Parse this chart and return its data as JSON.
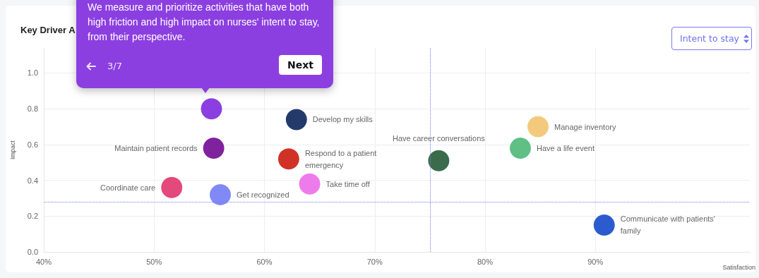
{
  "chart_data": {
    "type": "scatter",
    "title": "Key Driver A",
    "xlabel": "Satisfaction",
    "ylabel": "Impact",
    "xlim": [
      40,
      104
    ],
    "xticks": [
      {
        "value": 40,
        "label": "40%"
      },
      {
        "value": 50,
        "label": "50%"
      },
      {
        "value": 60,
        "label": "60%"
      },
      {
        "value": 70,
        "label": "70%"
      },
      {
        "value": 80,
        "label": "80%"
      },
      {
        "value": 90,
        "label": "90%"
      }
    ],
    "ylim": [
      0,
      1.14
    ],
    "yticks": [
      {
        "value": 0,
        "label": "0.0"
      },
      {
        "value": 0.2,
        "label": "0.2"
      },
      {
        "value": 0.4,
        "label": "0.4"
      },
      {
        "value": 0.6,
        "label": "0.6"
      },
      {
        "value": 0.8,
        "label": "0.8"
      },
      {
        "value": 1,
        "label": "1.0"
      }
    ],
    "grid": true,
    "marker": "circle",
    "series": [
      {
        "color": "#8b3fe0",
        "x": [
          55.2
        ],
        "values": [
          0.8
        ]
      },
      {
        "name": "Develop my skills",
        "color": "#233a6b",
        "x": [
          62.9
        ],
        "values": [
          0.74
        ]
      },
      {
        "name": "Maintain patient records",
        "color": "#80229e",
        "x": [
          55.4
        ],
        "values": [
          0.58
        ]
      },
      {
        "name": "Respond to a patient emergency",
        "color": "#d13227",
        "x": [
          62.2
        ],
        "values": [
          0.52
        ]
      },
      {
        "name": "Coordinate care",
        "color": "#e3497a",
        "x": [
          51.6
        ],
        "values": [
          0.36
        ]
      },
      {
        "name": "Get recognized",
        "color": "#8089f5",
        "x": [
          56.0
        ],
        "values": [
          0.32
        ]
      },
      {
        "name": "Take time off",
        "color": "#ee7bec",
        "x": [
          64.1
        ],
        "values": [
          0.38
        ]
      },
      {
        "name": "Have career conversations",
        "color": "#3c6b4c",
        "x": [
          75.8
        ],
        "values": [
          0.51
        ]
      },
      {
        "name": "Manage inventory",
        "color": "#f3c97e",
        "x": [
          84.8
        ],
        "values": [
          0.7
        ]
      },
      {
        "name": "Have a life event",
        "color": "#5fbf85",
        "x": [
          83.2
        ],
        "values": [
          0.58
        ]
      },
      {
        "name": "Communicate with patients' family",
        "color": "#2b5bcf",
        "x": [
          90.8
        ],
        "values": [
          0.15
        ]
      }
    ],
    "ref_lines": [
      {
        "axis": "x",
        "value": 75,
        "color": "#7b7bf0",
        "line_style": "dotted"
      },
      {
        "axis": "y",
        "value": 0.28,
        "color": "#7b7bf0",
        "line_style": "dotted"
      }
    ],
    "annotations": [
      "We measure and prioritize activities that have both high friction and high impact on nurses' intent to stay, from their perspective.",
      "3/7",
      "Next",
      "Intent to stay"
    ]
  }
}
